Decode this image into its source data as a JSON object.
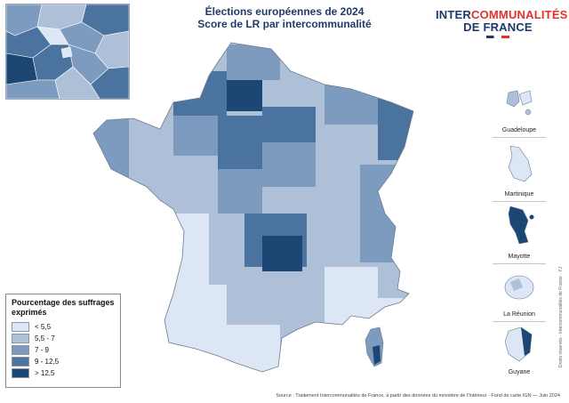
{
  "title": {
    "line1": "Élections européennes de 2024",
    "line2": "Score de LR par intercommunalité"
  },
  "logo": {
    "line1a": "INTER",
    "line1b": "COMMUNALITÉS",
    "line2": "DE FRANCE"
  },
  "legend": {
    "title": "Pourcentage des suffrages exprimés",
    "items": [
      {
        "label": "< 5,5",
        "color": "#dde6f4"
      },
      {
        "label": "5,5 - 7",
        "color": "#aebfd8"
      },
      {
        "label": "7 - 9",
        "color": "#7c9bbf"
      },
      {
        "label": "9 - 12,5",
        "color": "#4b73a0"
      },
      {
        "label": "> 12,5",
        "color": "#1c4774"
      }
    ]
  },
  "overseas": [
    {
      "label": "Guadeloupe"
    },
    {
      "label": "Martinique"
    },
    {
      "label": "Mayotte"
    },
    {
      "label": "La Réunion"
    },
    {
      "label": "Guyane"
    }
  ],
  "source": "Source : Traitement Intercommunalités de France, à partir des données du ministère de l'Intérieur - Fond de carte IGN — Juin 2024",
  "rights": "Droits réservés - Intercommunalités de France - YJ"
}
